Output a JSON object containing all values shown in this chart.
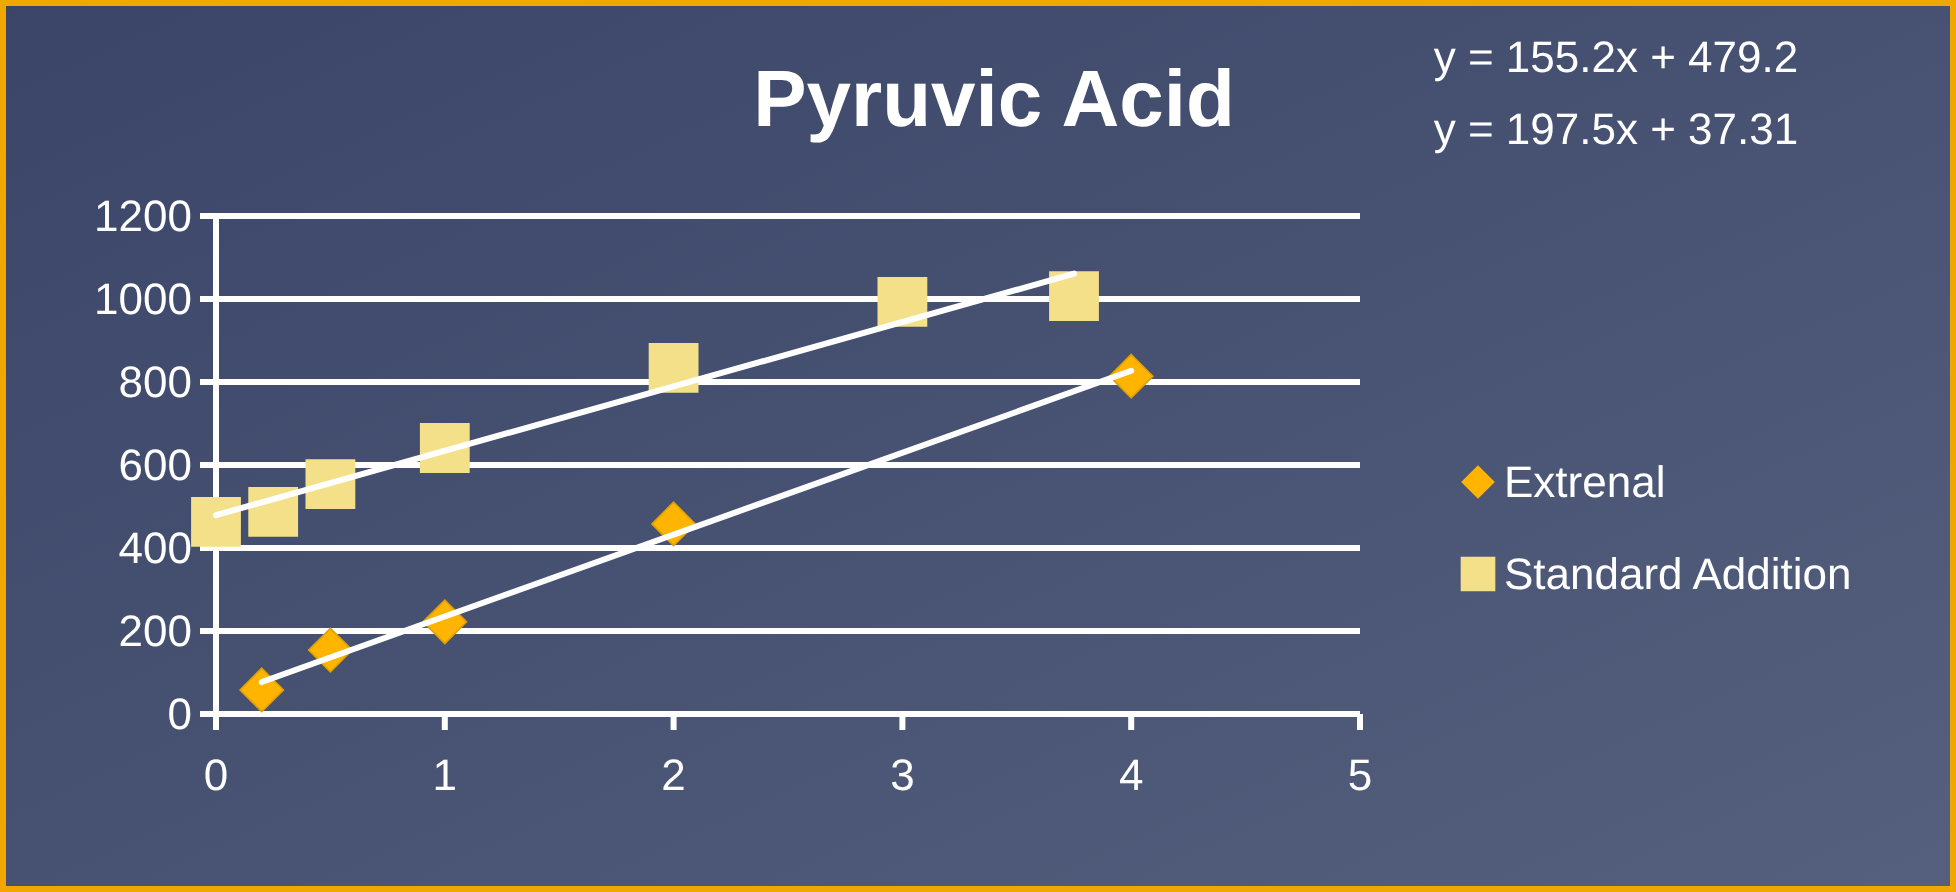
{
  "chart_data": {
    "type": "scatter",
    "title": "Pyruvic Acid",
    "annotations": [
      "y = 155.2x + 479.2",
      "y = 197.5x + 37.31"
    ],
    "xlim": [
      0,
      5
    ],
    "xticks": [
      0,
      1,
      2,
      3,
      4,
      5
    ],
    "ylim": [
      0,
      1200
    ],
    "yticks": [
      0,
      200,
      400,
      600,
      800,
      1000,
      1200
    ],
    "grid": "y",
    "legend": "right",
    "series": [
      {
        "name": "Extrenal",
        "marker": "diamond",
        "color": "#ffb400",
        "x": [
          0.2,
          0.5,
          1,
          2,
          4
        ],
        "values": [
          58,
          154,
          222,
          458,
          814
        ]
      },
      {
        "name": "Standard Addition",
        "marker": "square",
        "color": "#f5e08a",
        "x": [
          0,
          0.25,
          0.5,
          1,
          2,
          3,
          3.75
        ],
        "values": [
          463,
          487,
          554,
          641,
          834,
          993,
          1007
        ]
      },
      {
        "type": "line",
        "marker": "none",
        "color": "#ffffff",
        "x": [
          0,
          3.75
        ],
        "values": [
          479,
          1061
        ]
      },
      {
        "type": "line",
        "marker": "none",
        "color": "#ffffff",
        "x": [
          0.2,
          4
        ],
        "values": [
          77,
          827
        ]
      }
    ]
  }
}
